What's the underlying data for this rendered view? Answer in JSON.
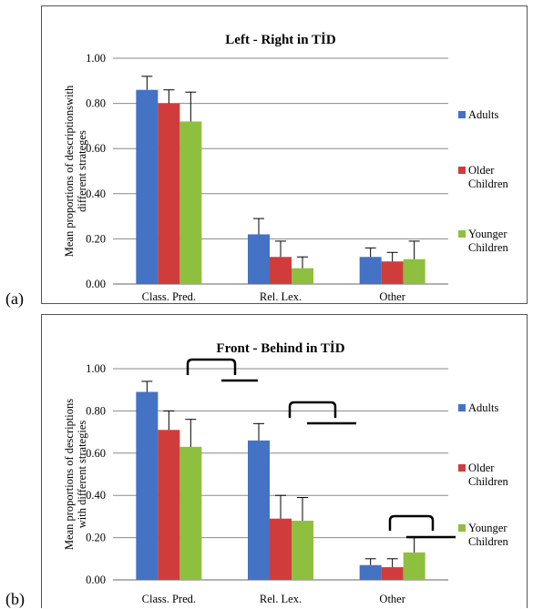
{
  "labels": {
    "a": "(a)",
    "b": "(b)"
  },
  "colors": {
    "adults": "#4472c4",
    "older": "#d03c3c",
    "younger": "#8fbf3f",
    "grid": "#8a8a8a",
    "error": "#000000"
  },
  "chart_data": [
    {
      "type": "bar",
      "title": "Left - Right in TİD",
      "ylabel": "Mean proportions of descriptions with different strateges",
      "xlabel": "",
      "ylim": [
        0,
        1
      ],
      "yticks": [
        "0.00",
        "0.20",
        "0.40",
        "0.60",
        "0.80",
        "1.00"
      ],
      "grid": true,
      "legend_position": "right",
      "categories": [
        "Class. Pred.",
        "Rel. Lex.",
        "Other"
      ],
      "series": [
        {
          "name": "Adults",
          "values": [
            0.86,
            0.22,
            0.12
          ],
          "errors": [
            0.06,
            0.07,
            0.04
          ]
        },
        {
          "name": "Older Children",
          "values": [
            0.8,
            0.12,
            0.1
          ],
          "errors": [
            0.06,
            0.07,
            0.04
          ]
        },
        {
          "name": "Younger Children",
          "values": [
            0.72,
            0.07,
            0.11
          ],
          "errors": [
            0.13,
            0.05,
            0.08
          ]
        }
      ]
    },
    {
      "type": "bar",
      "title": "Front - Behind in TİD",
      "ylabel": "Mean proportions of descriptions with different strategies",
      "xlabel": "",
      "ylim": [
        0,
        1
      ],
      "yticks": [
        "0.00",
        "0.20",
        "0.40",
        "0.60",
        "0.80",
        "1.00"
      ],
      "grid": true,
      "legend_position": "right",
      "categories": [
        "Class. Pred.",
        "Rel. Lex.",
        "Other"
      ],
      "series": [
        {
          "name": "Adults",
          "values": [
            0.89,
            0.66,
            0.07
          ],
          "errors": [
            0.05,
            0.08,
            0.03
          ]
        },
        {
          "name": "Older Children",
          "values": [
            0.71,
            0.29,
            0.06
          ],
          "errors": [
            0.09,
            0.11,
            0.04
          ]
        },
        {
          "name": "Younger Children",
          "values": [
            0.63,
            0.28,
            0.13
          ],
          "errors": [
            0.13,
            0.11,
            0.07
          ]
        }
      ]
    }
  ]
}
